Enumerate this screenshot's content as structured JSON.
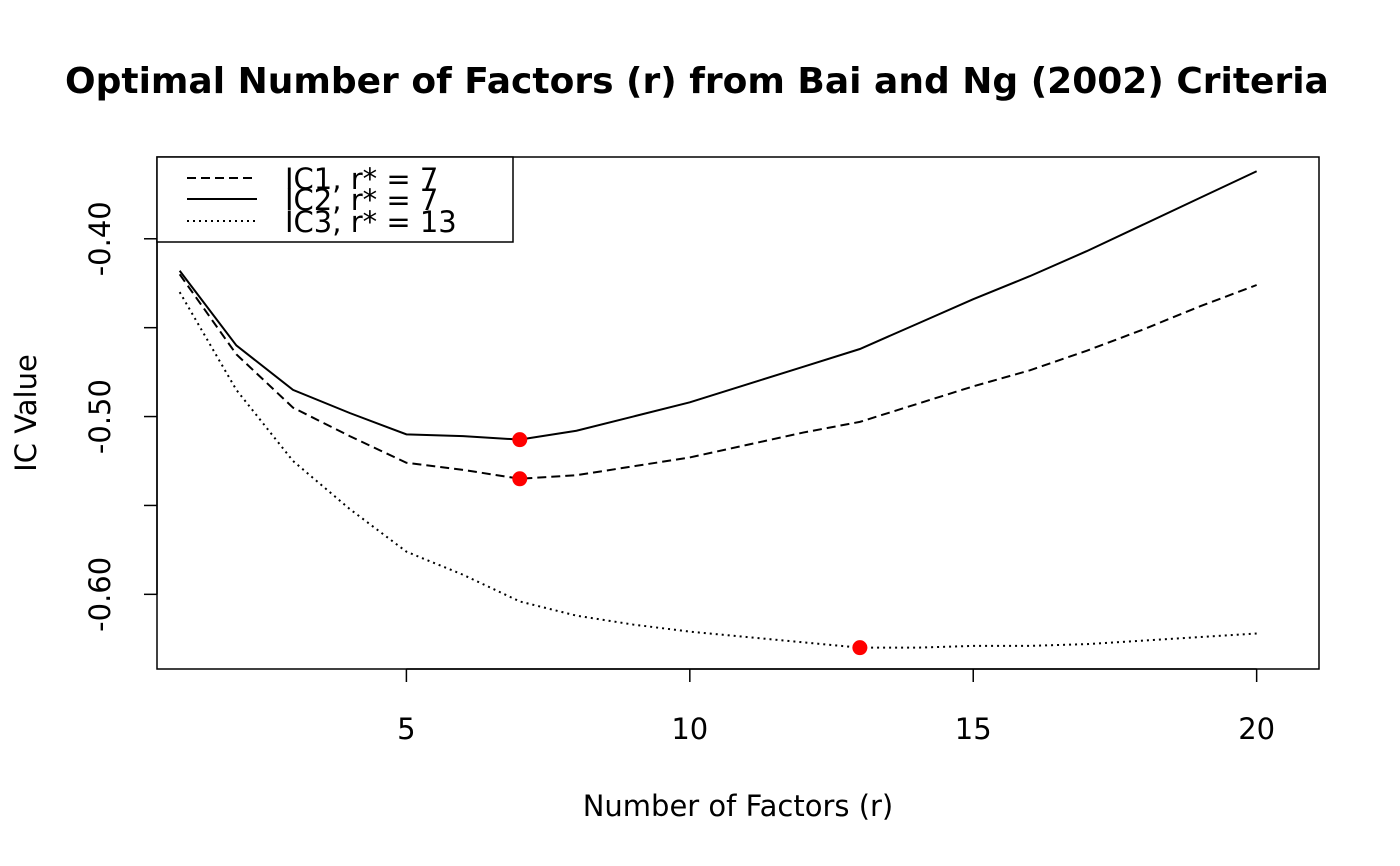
{
  "chart_data": {
    "type": "line",
    "title": "Optimal Number of Factors (r) from Bai and Ng (2002) Criteria",
    "xlabel": "Number of Factors (r)",
    "ylabel": "IC Value",
    "xlim": [
      0.6,
      21.1
    ],
    "ylim": [
      -0.642,
      -0.354
    ],
    "x_ticks": [
      5,
      10,
      15,
      20
    ],
    "x_tick_labels": [
      "5",
      "10",
      "15",
      "20"
    ],
    "y_ticks": [
      -0.4,
      -0.45,
      -0.5,
      -0.55,
      -0.6
    ],
    "y_tick_labels": [
      "-0.40",
      "",
      "-0.50",
      "",
      "-0.60"
    ],
    "grid": false,
    "legend_position": "top-left",
    "x": [
      1,
      2,
      3,
      4,
      5,
      6,
      7,
      8,
      9,
      10,
      11,
      12,
      13,
      14,
      15,
      16,
      17,
      18,
      19,
      20
    ],
    "series": [
      {
        "name": "IC1, r* = 7",
        "line_style": "dashed",
        "values": [
          -0.42,
          -0.465,
          -0.495,
          -0.511,
          -0.526,
          -0.53,
          -0.535,
          -0.533,
          -0.528,
          -0.523,
          -0.516,
          -0.509,
          -0.503,
          -0.493,
          -0.483,
          -0.474,
          -0.463,
          -0.451,
          -0.438,
          -0.426
        ],
        "optimum": {
          "x": 7,
          "y": -0.535
        }
      },
      {
        "name": "IC2, r* = 7",
        "line_style": "solid",
        "values": [
          -0.418,
          -0.46,
          -0.485,
          -0.498,
          -0.51,
          -0.511,
          -0.513,
          -0.508,
          -0.5,
          -0.492,
          -0.482,
          -0.472,
          -0.462,
          -0.448,
          -0.434,
          -0.421,
          -0.407,
          -0.392,
          -0.377,
          -0.362
        ],
        "optimum": {
          "x": 7,
          "y": -0.513
        }
      },
      {
        "name": "IC3, r* = 13",
        "line_style": "dotted",
        "values": [
          -0.43,
          -0.485,
          -0.525,
          -0.552,
          -0.576,
          -0.589,
          -0.604,
          -0.612,
          -0.617,
          -0.621,
          -0.624,
          -0.627,
          -0.63,
          -0.63,
          -0.629,
          -0.629,
          -0.628,
          -0.626,
          -0.624,
          -0.622
        ],
        "optimum": {
          "x": 13,
          "y": -0.63
        }
      }
    ],
    "colors": {
      "line": "#000000",
      "optimum_marker": "#ff0000",
      "background": "#ffffff"
    }
  }
}
